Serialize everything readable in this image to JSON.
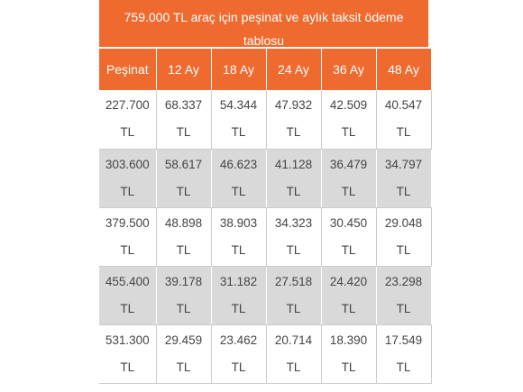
{
  "table": {
    "title": "759.000 TL araç için peşinat ve aylık taksit ödeme tablosu",
    "header": [
      "Peşinat",
      "12 Ay",
      "18 Ay",
      "24 Ay",
      "36 Ay",
      "48 Ay"
    ],
    "rows": [
      [
        "227.700 TL",
        "68.337 TL",
        "54.344 TL",
        "47.932 TL",
        "42.509 TL",
        "40.547 TL"
      ],
      [
        "303.600 TL",
        "58.617 TL",
        "46.623 TL",
        "41.128 TL",
        "36.479 TL",
        "34.797 TL"
      ],
      [
        "379.500 TL",
        "48.898 TL",
        "38.903 TL",
        "34.323 TL",
        "30.450 TL",
        "29.048 TL"
      ],
      [
        "455.400 TL",
        "39.178 TL",
        "31.182 TL",
        "27.518 TL",
        "24.420 TL",
        "23.298 TL"
      ],
      [
        "531.300 TL",
        "29.459 TL",
        "23.462 TL",
        "20.714 TL",
        "18.390 TL",
        "17.549 TL"
      ]
    ]
  }
}
